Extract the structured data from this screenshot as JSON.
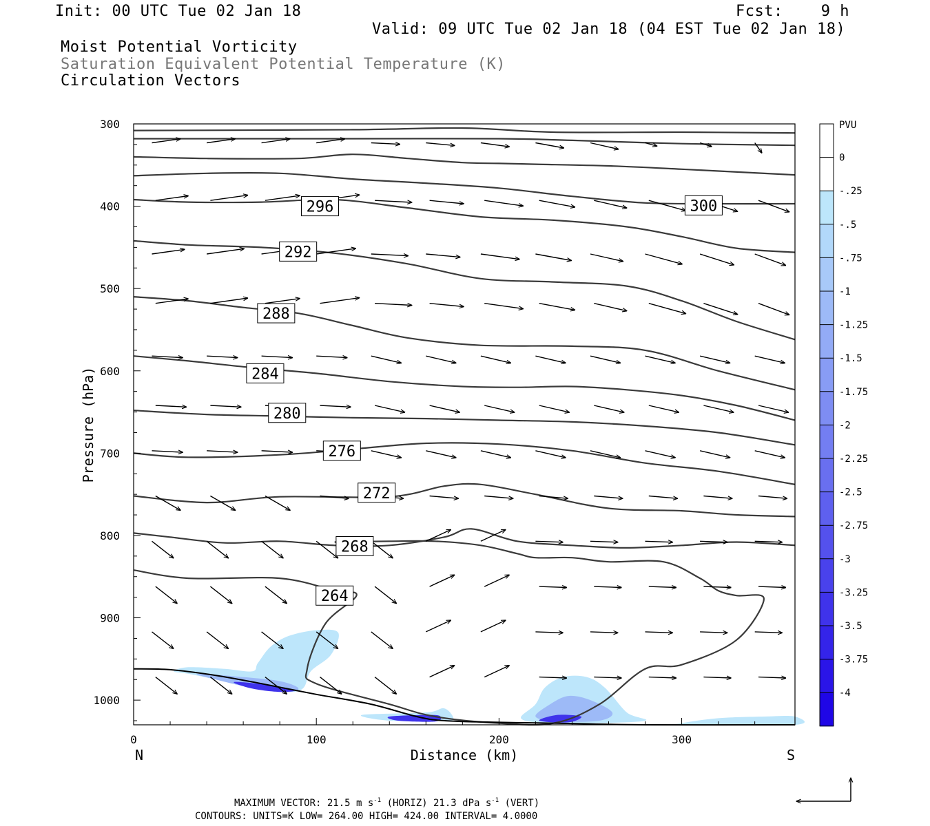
{
  "header": {
    "init": "Init: 00 UTC Tue 02 Jan 18",
    "fcst": "Fcst:    9 h",
    "valid": "Valid: 09 UTC Tue 02 Jan 18 (04 EST Tue 02 Jan 18)",
    "field1": "Moist Potential Vorticity",
    "field2": "Saturation Equivalent Potential Temperature (K)",
    "field3": "Circulation Vectors"
  },
  "footer": {
    "max_vector_prefix": "MAXIMUM VECTOR:  21.5 m s",
    "max_vector_mid": " (HORIZ)        21.3 dPa s",
    "max_vector_suffix": " (VERT)",
    "exponent": "-1",
    "contours": "CONTOURS:  UNITS=K  LOW=  264.00      HIGH=  424.00      INTERVAL=    4.0000"
  },
  "colors": {
    "contour": "#3a3a3a",
    "vector": "#000000",
    "pv_scale": [
      "#ffffff",
      "#ffffff",
      "#bde6fb",
      "#b2d8fa",
      "#a8c9f9",
      "#9dbaf7",
      "#93abf6",
      "#889cf5",
      "#7e8df3",
      "#737ef2",
      "#696ff0",
      "#5e60ef",
      "#5451ed",
      "#4942ec",
      "#3f33eb",
      "#3424e9",
      "#2a15e8",
      "#1f06e6"
    ]
  },
  "chart_data": {
    "type": "cross-section",
    "xlabel": "Distance (km)",
    "ylabel": "Pressure (hPa)",
    "xlim": [
      0,
      362
    ],
    "ylim": [
      1030,
      300
    ],
    "x_ticks": [
      0,
      100,
      200,
      300
    ],
    "y_ticks": [
      300,
      400,
      500,
      600,
      700,
      800,
      900,
      1000
    ],
    "x_end_labels": {
      "left": "N",
      "right": "S"
    },
    "colorbar": {
      "unit": "PVU",
      "labels": [
        "0",
        "-.25",
        "-.5",
        "-.75",
        "-1",
        "-1.25",
        "-1.5",
        "-1.75",
        "-2",
        "-2.25",
        "-2.5",
        "-2.75",
        "-3",
        "-3.25",
        "-3.5",
        "-3.75",
        "-4"
      ]
    },
    "theta_es_contours": [
      {
        "value": 264,
        "label": "264",
        "label_at": [
          110,
          873
        ],
        "points": [
          [
            0,
            842
          ],
          [
            30,
            852
          ],
          [
            80,
            852
          ],
          [
            110,
            867
          ],
          [
            122,
            873
          ],
          [
            105,
            907
          ],
          [
            95,
            962
          ],
          [
            100,
            980
          ],
          [
            140,
            1005
          ],
          [
            165,
            1020
          ],
          [
            200,
            1028
          ],
          [
            230,
            1028
          ],
          [
            255,
            1005
          ],
          [
            280,
            962
          ],
          [
            300,
            957
          ],
          [
            330,
            927
          ],
          [
            345,
            877
          ],
          [
            330,
            873
          ],
          [
            320,
            867
          ],
          [
            310,
            852
          ],
          [
            290,
            832
          ],
          [
            260,
            832
          ],
          [
            240,
            827
          ],
          [
            220,
            827
          ],
          [
            210,
            822
          ],
          [
            190,
            812
          ],
          [
            165,
            807
          ],
          [
            140,
            807
          ],
          [
            110,
            808
          ]
        ]
      },
      {
        "value": 268,
        "label": "268",
        "label_at": [
          121,
          813
        ],
        "points": [
          [
            0,
            797
          ],
          [
            20,
            802
          ],
          [
            50,
            809
          ],
          [
            80,
            807
          ],
          [
            110,
            812
          ],
          [
            140,
            812
          ],
          [
            170,
            802
          ],
          [
            185,
            792
          ],
          [
            210,
            807
          ],
          [
            240,
            812
          ],
          [
            270,
            815
          ],
          [
            300,
            812
          ],
          [
            330,
            808
          ],
          [
            362,
            812
          ]
        ]
      },
      {
        "value": 272,
        "label": "272",
        "label_at": [
          133,
          748
        ],
        "points": [
          [
            0,
            752
          ],
          [
            40,
            760
          ],
          [
            80,
            753
          ],
          [
            140,
            753
          ],
          [
            170,
            740
          ],
          [
            190,
            738
          ],
          [
            220,
            750
          ],
          [
            260,
            767
          ],
          [
            300,
            770
          ],
          [
            330,
            775
          ],
          [
            362,
            777
          ]
        ]
      },
      {
        "value": 276,
        "label": "276",
        "label_at": [
          114,
          697
        ],
        "points": [
          [
            0,
            700
          ],
          [
            30,
            705
          ],
          [
            80,
            702
          ],
          [
            120,
            695
          ],
          [
            160,
            688
          ],
          [
            200,
            689
          ],
          [
            240,
            697
          ],
          [
            280,
            712
          ],
          [
            320,
            722
          ],
          [
            362,
            738
          ]
        ]
      },
      {
        "value": 280,
        "label": "280",
        "label_at": [
          84,
          651
        ],
        "points": [
          [
            0,
            648
          ],
          [
            40,
            653
          ],
          [
            80,
            655
          ],
          [
            120,
            657
          ],
          [
            160,
            658
          ],
          [
            200,
            660
          ],
          [
            240,
            662
          ],
          [
            280,
            667
          ],
          [
            320,
            675
          ],
          [
            362,
            690
          ]
        ]
      },
      {
        "value": 284,
        "label": "284",
        "label_at": [
          72,
          603
        ],
        "points": [
          [
            0,
            582
          ],
          [
            30,
            588
          ],
          [
            60,
            595
          ],
          [
            100,
            603
          ],
          [
            140,
            613
          ],
          [
            180,
            619
          ],
          [
            210,
            620
          ],
          [
            240,
            619
          ],
          [
            270,
            623
          ],
          [
            300,
            630
          ],
          [
            330,
            642
          ],
          [
            362,
            660
          ]
        ]
      },
      {
        "value": 288,
        "label": "288",
        "label_at": [
          78,
          530
        ],
        "points": [
          [
            0,
            510
          ],
          [
            30,
            515
          ],
          [
            60,
            523
          ],
          [
            90,
            530
          ],
          [
            120,
            545
          ],
          [
            150,
            560
          ],
          [
            190,
            569
          ],
          [
            240,
            570
          ],
          [
            280,
            575
          ],
          [
            320,
            600
          ],
          [
            362,
            623
          ]
        ]
      },
      {
        "value": 292,
        "label": "292",
        "label_at": [
          90,
          455
        ],
        "points": [
          [
            0,
            442
          ],
          [
            30,
            447
          ],
          [
            70,
            450
          ],
          [
            110,
            457
          ],
          [
            150,
            470
          ],
          [
            190,
            488
          ],
          [
            230,
            492
          ],
          [
            270,
            497
          ],
          [
            300,
            515
          ],
          [
            330,
            540
          ],
          [
            362,
            562
          ]
        ]
      },
      {
        "value": 296,
        "label": "296",
        "label_at": [
          102,
          400
        ],
        "points": [
          [
            0,
            392
          ],
          [
            30,
            395
          ],
          [
            70,
            395
          ],
          [
            110,
            392
          ],
          [
            150,
            402
          ],
          [
            190,
            413
          ],
          [
            230,
            417
          ],
          [
            270,
            425
          ],
          [
            300,
            437
          ],
          [
            330,
            451
          ],
          [
            362,
            456
          ]
        ]
      },
      {
        "value": 300,
        "label": "300",
        "label_at": [
          312,
          399
        ],
        "points": [
          [
            0,
            363
          ],
          [
            40,
            360
          ],
          [
            80,
            360
          ],
          [
            120,
            367
          ],
          [
            160,
            372
          ],
          [
            200,
            378
          ],
          [
            240,
            388
          ],
          [
            280,
            396
          ],
          [
            320,
            397
          ],
          [
            362,
            397
          ]
        ]
      },
      {
        "value": 304,
        "label": "",
        "label_at": null,
        "points": [
          [
            0,
            340
          ],
          [
            40,
            342
          ],
          [
            90,
            342
          ],
          [
            120,
            337
          ],
          [
            150,
            342
          ],
          [
            180,
            347
          ],
          [
            200,
            348
          ],
          [
            220,
            349
          ],
          [
            260,
            351
          ],
          [
            300,
            355
          ],
          [
            362,
            362
          ]
        ]
      },
      {
        "value": 308,
        "label": "",
        "label_at": null,
        "points": [
          [
            0,
            318
          ],
          [
            60,
            318
          ],
          [
            120,
            318
          ],
          [
            200,
            318
          ],
          [
            240,
            320
          ],
          [
            300,
            324
          ],
          [
            362,
            326
          ]
        ]
      },
      {
        "value": 312,
        "label": "",
        "label_at": null,
        "points": [
          [
            0,
            308
          ],
          [
            120,
            307
          ],
          [
            180,
            305
          ],
          [
            230,
            310
          ],
          [
            300,
            310
          ],
          [
            362,
            311
          ]
        ]
      }
    ],
    "pv_regions": [
      {
        "level": "-0.25",
        "points": [
          [
            22,
            965
          ],
          [
            30,
            960
          ],
          [
            50,
            962
          ],
          [
            65,
            965
          ],
          [
            68,
            955
          ],
          [
            75,
            935
          ],
          [
            85,
            922
          ],
          [
            100,
            915
          ],
          [
            112,
            918
          ],
          [
            108,
            945
          ],
          [
            97,
            965
          ],
          [
            93,
            985
          ],
          [
            85,
            990
          ],
          [
            65,
            985
          ],
          [
            45,
            975
          ],
          [
            30,
            968
          ]
        ]
      },
      {
        "level": "-1.0",
        "points": [
          [
            35,
            968
          ],
          [
            60,
            972
          ],
          [
            80,
            977
          ],
          [
            90,
            985
          ],
          [
            85,
            990
          ],
          [
            65,
            985
          ],
          [
            45,
            975
          ]
        ]
      },
      {
        "level": "-2.5",
        "points": [
          [
            55,
            978
          ],
          [
            75,
            982
          ],
          [
            88,
            988
          ],
          [
            80,
            990
          ],
          [
            65,
            986
          ]
        ]
      },
      {
        "level": "-0.25",
        "points": [
          [
            125,
            1018
          ],
          [
            160,
            1015
          ],
          [
            170,
            1010
          ],
          [
            175,
            1022
          ],
          [
            170,
            1025
          ],
          [
            140,
            1025
          ]
        ]
      },
      {
        "level": "-2.5",
        "points": [
          [
            140,
            1020
          ],
          [
            162,
            1018
          ],
          [
            168,
            1020
          ],
          [
            165,
            1026
          ],
          [
            145,
            1025
          ]
        ]
      },
      {
        "level": "-0.25",
        "points": [
          [
            212,
            1022
          ],
          [
            220,
            1005
          ],
          [
            225,
            985
          ],
          [
            235,
            972
          ],
          [
            248,
            972
          ],
          [
            258,
            985
          ],
          [
            270,
            1015
          ],
          [
            280,
            1025
          ],
          [
            250,
            1028
          ],
          [
            225,
            1028
          ]
        ]
      },
      {
        "level": "-1.0",
        "points": [
          [
            220,
            1020
          ],
          [
            228,
            1005
          ],
          [
            238,
            995
          ],
          [
            250,
            1000
          ],
          [
            262,
            1015
          ],
          [
            255,
            1025
          ],
          [
            232,
            1026
          ]
        ]
      },
      {
        "level": "-2.5",
        "points": [
          [
            222,
            1025
          ],
          [
            232,
            1018
          ],
          [
            245,
            1020
          ],
          [
            238,
            1027
          ]
        ]
      },
      {
        "level": "-0.25",
        "points": [
          [
            300,
            1028
          ],
          [
            320,
            1022
          ],
          [
            345,
            1020
          ],
          [
            362,
            1020
          ],
          [
            362,
            1030
          ],
          [
            300,
            1030
          ]
        ]
      }
    ],
    "topography": [
      [
        0,
        962
      ],
      [
        20,
        963
      ],
      [
        45,
        970
      ],
      [
        70,
        980
      ],
      [
        100,
        993
      ],
      [
        130,
        1005
      ],
      [
        155,
        1020
      ],
      [
        170,
        1025
      ],
      [
        200,
        1027
      ],
      [
        230,
        1028
      ],
      [
        280,
        1030
      ],
      [
        362,
        1030
      ]
    ]
  }
}
